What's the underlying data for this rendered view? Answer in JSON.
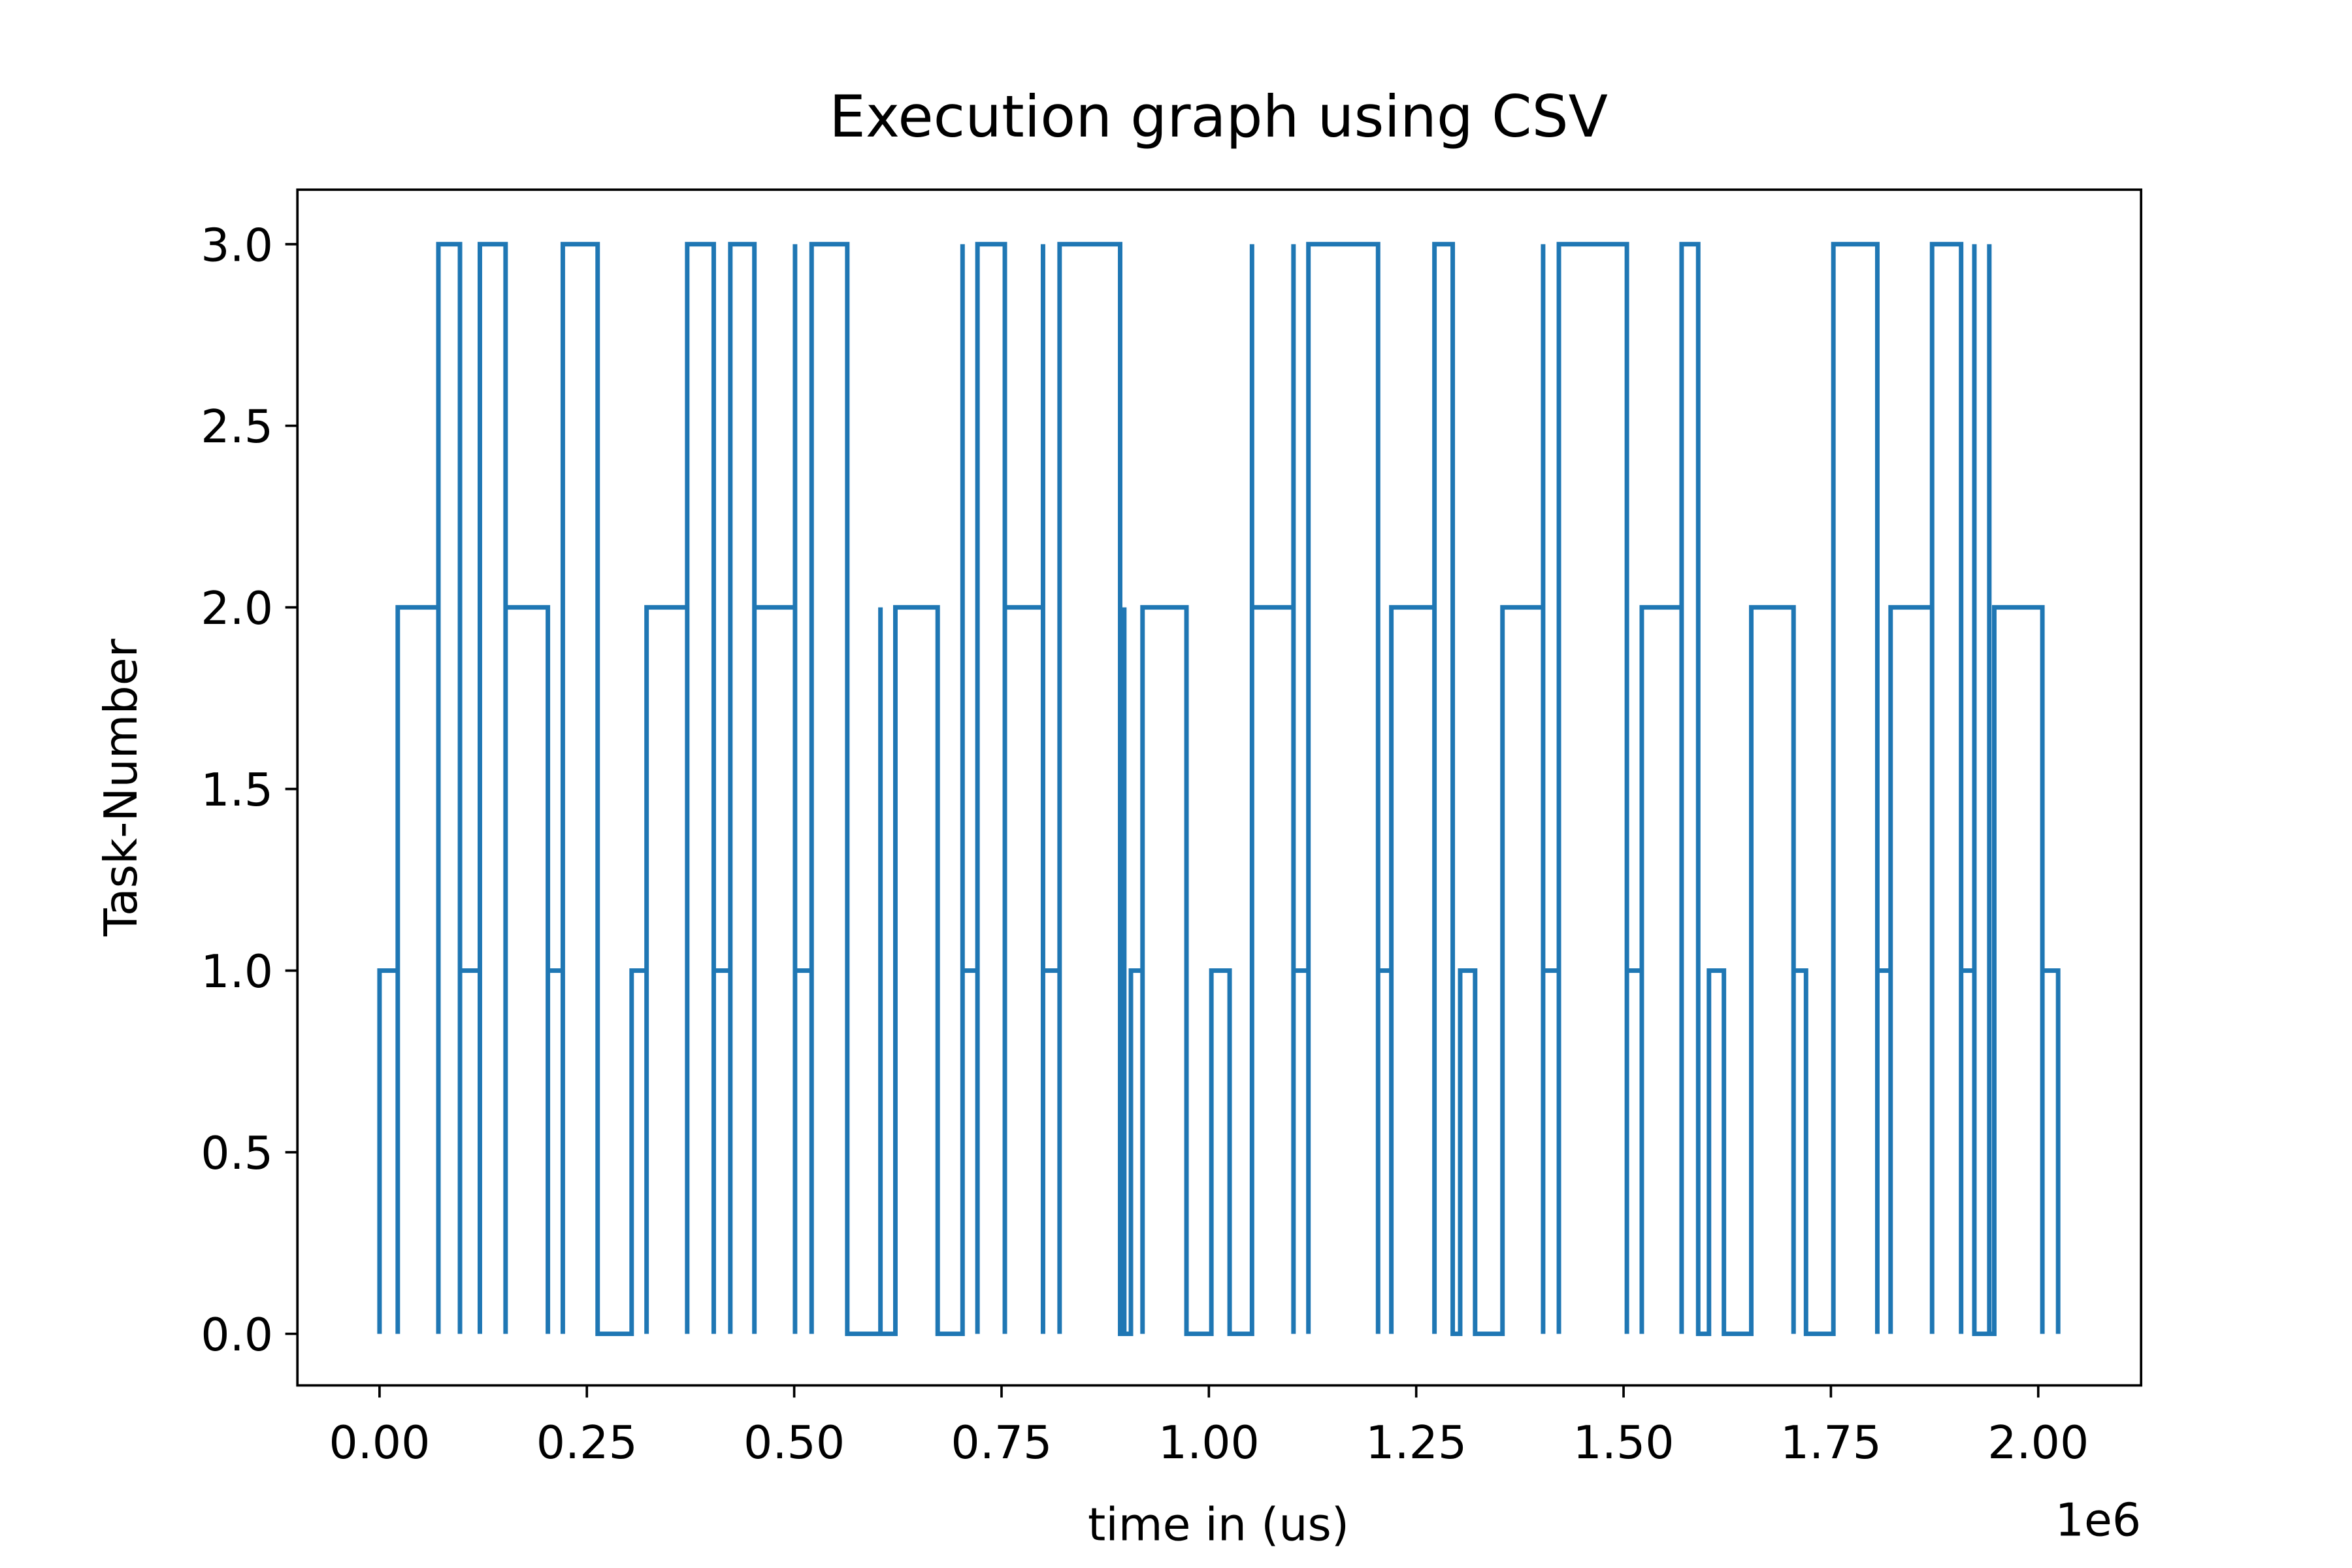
{
  "chart_data": {
    "type": "line",
    "title": "Execution graph using CSV",
    "x_label": "time in (us)",
    "y_label": "Task-Number",
    "x_offset_label": "1e6",
    "xlim": [
      -99000,
      2124000
    ],
    "ylim": [
      -0.142,
      3.15
    ],
    "xticks": [
      {
        "value": 0,
        "label": "0.00"
      },
      {
        "value": 250000,
        "label": "0.25"
      },
      {
        "value": 500000,
        "label": "0.50"
      },
      {
        "value": 750000,
        "label": "0.75"
      },
      {
        "value": 1000000,
        "label": "1.00"
      },
      {
        "value": 1250000,
        "label": "1.25"
      },
      {
        "value": 1500000,
        "label": "1.50"
      },
      {
        "value": 1750000,
        "label": "1.75"
      },
      {
        "value": 2000000,
        "label": "2.00"
      }
    ],
    "yticks": [
      {
        "value": 0,
        "label": "0.0"
      },
      0.5,
      {
        "value": 1,
        "label": "1.0"
      },
      1.5,
      {
        "value": 2,
        "label": "2.0"
      },
      2.5,
      {
        "value": 3,
        "label": "3.0"
      }
    ],
    "grid": false,
    "series": [
      {
        "color": "#1f77b4",
        "x": [
          0,
          0,
          22000,
          22000,
          22000,
          71000,
          71000,
          71000,
          97000,
          97000,
          97000,
          121000,
          121000,
          121000,
          152000,
          152000,
          152000,
          203000,
          203000,
          203000,
          221000,
          221000,
          221000,
          263000,
          263000,
          304000,
          304000,
          322000,
          322000,
          322000,
          371000,
          371000,
          371000,
          403000,
          403000,
          403000,
          423000,
          423000,
          423000,
          452000,
          452000,
          452000,
          501000,
          501000,
          501000,
          501000,
          501000,
          521000,
          521000,
          521000,
          564000,
          564000,
          604000,
          604000,
          604000,
          622000,
          622000,
          673000,
          673000,
          703000,
          703000,
          703000,
          703000,
          721000,
          721000,
          721000,
          754000,
          754000,
          754000,
          800000,
          800000,
          800000,
          800000,
          800000,
          820000,
          820000,
          820000,
          893000,
          893000,
          898000,
          898000,
          898000,
          906000,
          906000,
          920000,
          920000,
          920000,
          973000,
          973000,
          1003000,
          1003000,
          1025000,
          1025000,
          1052000,
          1052000,
          1052000,
          1052000,
          1102000,
          1102000,
          1102000,
          1102000,
          1102000,
          1120000,
          1120000,
          1120000,
          1204000,
          1204000,
          1204000,
          1220000,
          1220000,
          1220000,
          1272000,
          1272000,
          1272000,
          1294000,
          1294000,
          1303000,
          1303000,
          1321000,
          1321000,
          1354000,
          1354000,
          1403000,
          1403000,
          1403000,
          1403000,
          1403000,
          1422000,
          1422000,
          1422000,
          1504000,
          1504000,
          1504000,
          1522000,
          1522000,
          1522000,
          1570000,
          1570000,
          1570000,
          1590000,
          1590000,
          1603000,
          1603000,
          1621000,
          1621000,
          1654000,
          1654000,
          1705000,
          1705000,
          1705000,
          1720000,
          1720000,
          1753000,
          1753000,
          1806000,
          1806000,
          1806000,
          1822000,
          1822000,
          1822000,
          1872000,
          1872000,
          1872000,
          1907000,
          1907000,
          1907000,
          1923000,
          1923000,
          1923000,
          1923000,
          1941000,
          1941000,
          1941000,
          1947000,
          1947000,
          2005000,
          2005000,
          2005000,
          2024000,
          2024000
        ],
        "values": [
          0,
          1,
          1,
          0,
          2,
          2,
          0,
          3,
          3,
          0,
          1,
          1,
          0,
          3,
          3,
          0,
          2,
          2,
          0,
          1,
          1,
          0,
          3,
          3,
          0,
          0,
          1,
          1,
          0,
          2,
          2,
          0,
          3,
          3,
          0,
          1,
          1,
          0,
          3,
          3,
          0,
          2,
          2,
          0,
          3,
          0,
          1,
          1,
          0,
          3,
          3,
          0,
          0,
          2,
          0,
          0,
          2,
          2,
          0,
          0,
          3,
          0,
          1,
          1,
          0,
          3,
          3,
          0,
          2,
          2,
          0,
          3,
          0,
          1,
          1,
          0,
          3,
          3,
          0,
          0,
          2,
          0,
          0,
          1,
          1,
          0,
          2,
          2,
          0,
          0,
          1,
          1,
          0,
          0,
          3,
          0,
          2,
          2,
          0,
          3,
          0,
          1,
          1,
          0,
          3,
          3,
          0,
          1,
          1,
          0,
          2,
          2,
          0,
          3,
          3,
          0,
          0,
          1,
          1,
          0,
          0,
          2,
          2,
          0,
          3,
          0,
          1,
          1,
          0,
          3,
          3,
          0,
          1,
          1,
          0,
          2,
          2,
          0,
          3,
          3,
          0,
          0,
          1,
          1,
          0,
          0,
          2,
          2,
          0,
          1,
          1,
          0,
          0,
          3,
          3,
          0,
          1,
          1,
          0,
          2,
          2,
          0,
          3,
          3,
          0,
          1,
          1,
          0,
          3,
          0,
          0,
          3,
          0,
          0,
          2,
          2,
          0,
          1,
          1,
          0
        ]
      }
    ]
  }
}
